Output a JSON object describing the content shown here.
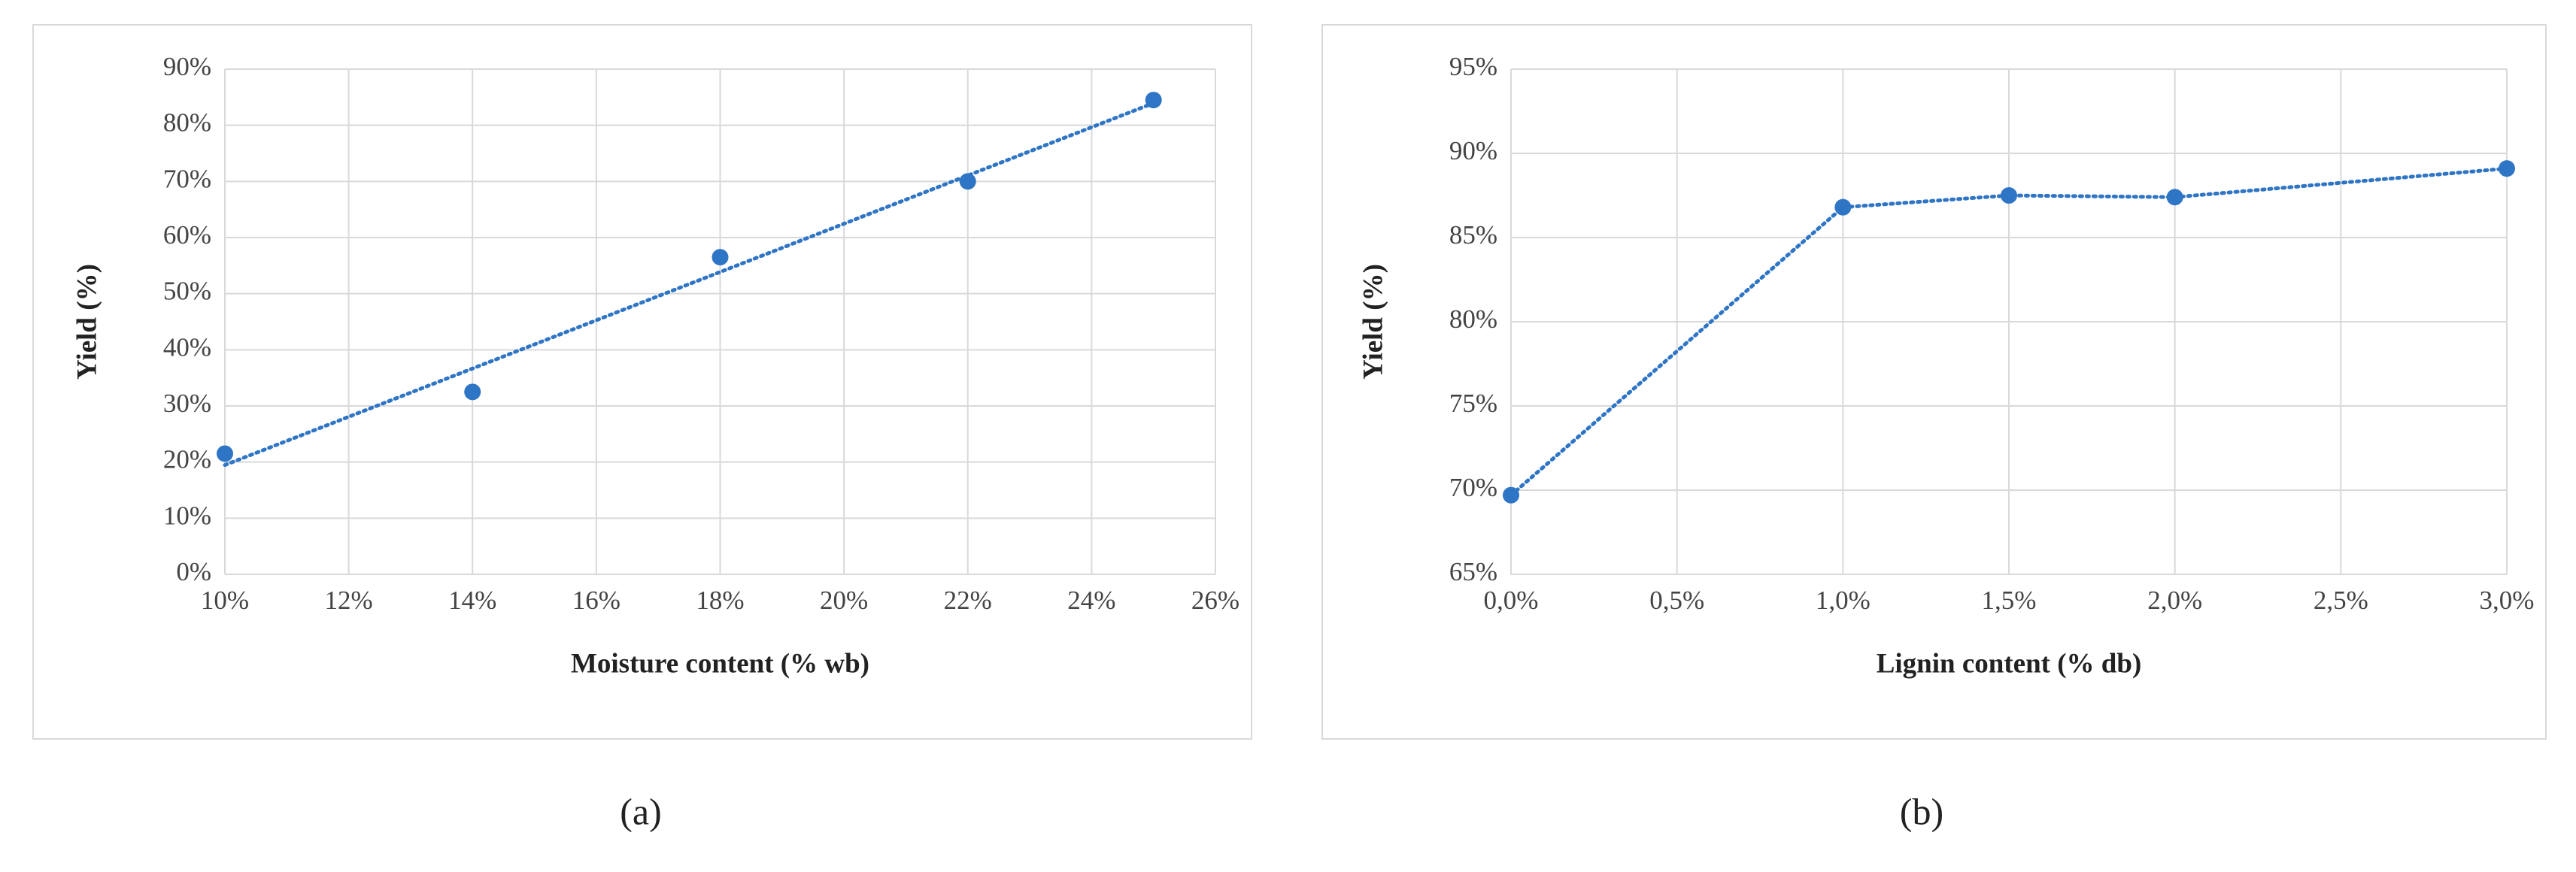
{
  "chart_data": [
    {
      "type": "scatter",
      "trendline": "linear",
      "caption": "(a)",
      "x_label": "Moisture content (% wb)",
      "y_label": "Yield (%)",
      "x": [
        10,
        14,
        18,
        22,
        25
      ],
      "values": [
        21.5,
        32.5,
        56.5,
        70,
        84.5
      ],
      "color": "#2f75c5",
      "xlim": [
        10,
        26
      ],
      "xticks": [
        {
          "value": 10,
          "label": "10%"
        },
        {
          "value": 12,
          "label": "12%"
        },
        {
          "value": 14,
          "label": "14%"
        },
        {
          "value": 16,
          "label": "16%"
        },
        {
          "value": 18,
          "label": "18%"
        },
        {
          "value": 20,
          "label": "20%"
        },
        {
          "value": 22,
          "label": "22%"
        },
        {
          "value": 24,
          "label": "24%"
        },
        {
          "value": 26,
          "label": "26%"
        }
      ],
      "ylim": [
        0,
        90
      ],
      "yticks": [
        {
          "value": 0,
          "label": "0%"
        },
        {
          "value": 10,
          "label": "10%"
        },
        {
          "value": 20,
          "label": "20%"
        },
        {
          "value": 30,
          "label": "30%"
        },
        {
          "value": 40,
          "label": "40%"
        },
        {
          "value": 50,
          "label": "50%"
        },
        {
          "value": 60,
          "label": "60%"
        },
        {
          "value": 70,
          "label": "70%"
        },
        {
          "value": 80,
          "label": "80%"
        },
        {
          "value": 90,
          "label": "90%"
        }
      ],
      "grid": true
    },
    {
      "type": "line",
      "caption": "(b)",
      "x_label": "Lignin content (% db)",
      "y_label": "Yield (%)",
      "x": [
        0,
        1,
        1.5,
        2,
        3
      ],
      "values": [
        69.7,
        86.8,
        87.5,
        87.4,
        89.1
      ],
      "color": "#2f75c5",
      "xlim": [
        0,
        3
      ],
      "xticks": [
        {
          "value": 0,
          "label": "0,0%"
        },
        {
          "value": 0.5,
          "label": "0,5%"
        },
        {
          "value": 1,
          "label": "1,0%"
        },
        {
          "value": 1.5,
          "label": "1,5%"
        },
        {
          "value": 2,
          "label": "2,0%"
        },
        {
          "value": 2.5,
          "label": "2,5%"
        },
        {
          "value": 3,
          "label": "3,0%"
        }
      ],
      "ylim": [
        65,
        95
      ],
      "yticks": [
        {
          "value": 65,
          "label": "65%"
        },
        {
          "value": 70,
          "label": "70%"
        },
        {
          "value": 75,
          "label": "75%"
        },
        {
          "value": 80,
          "label": "80%"
        },
        {
          "value": 85,
          "label": "85%"
        },
        {
          "value": 90,
          "label": "90%"
        },
        {
          "value": 95,
          "label": "95%"
        }
      ],
      "grid": true
    }
  ]
}
